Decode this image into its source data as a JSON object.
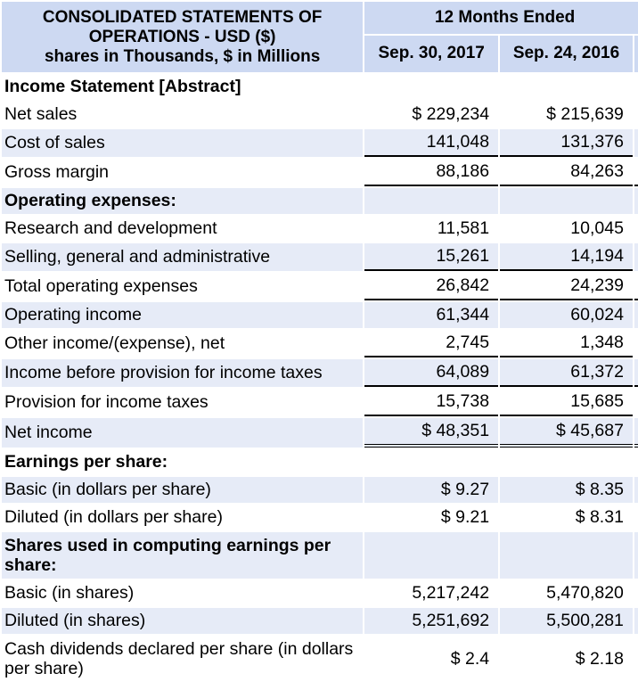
{
  "header": {
    "title_line1": "CONSOLIDATED STATEMENTS OF",
    "title_line2": "OPERATIONS - USD ($)",
    "title_line3": "shares in Thousands, $ in Millions",
    "period": "12 Months Ended",
    "col1": "Sep. 30, 2017",
    "col2": "Sep. 24, 2016"
  },
  "rows": {
    "income_statement": {
      "label": "Income Statement [Abstract]",
      "v1": "",
      "v2": ""
    },
    "net_sales": {
      "label": "Net sales",
      "v1": "$ 229,234",
      "v2": "$ 215,639"
    },
    "cost_of_sales": {
      "label": "Cost of sales",
      "v1": "141,048",
      "v2": "131,376"
    },
    "gross_margin": {
      "label": "Gross margin",
      "v1": "88,186",
      "v2": "84,263"
    },
    "operating_expenses": {
      "label": "Operating expenses:",
      "v1": "",
      "v2": ""
    },
    "rnd": {
      "label": "Research and development",
      "v1": "11,581",
      "v2": "10,045"
    },
    "sga": {
      "label": "Selling, general and administrative",
      "v1": "15,261",
      "v2": "14,194"
    },
    "total_opex": {
      "label": "Total operating expenses",
      "v1": "26,842",
      "v2": "24,239"
    },
    "operating_income": {
      "label": "Operating income",
      "v1": "61,344",
      "v2": "60,024"
    },
    "other_income": {
      "label": "Other income/(expense), net",
      "v1": "2,745",
      "v2": "1,348"
    },
    "income_before_tax": {
      "label": "Income before provision for income taxes",
      "v1": "64,089",
      "v2": "61,372"
    },
    "provision_tax": {
      "label": "Provision for income taxes",
      "v1": "15,738",
      "v2": "15,685"
    },
    "net_income": {
      "label": "Net income",
      "v1": "$ 48,351",
      "v2": "$ 45,687"
    },
    "eps": {
      "label": "Earnings per share:",
      "v1": "",
      "v2": ""
    },
    "eps_basic": {
      "label": "Basic (in dollars per share)",
      "v1": "$ 9.27",
      "v2": "$ 8.35"
    },
    "eps_diluted": {
      "label": "Diluted (in dollars per share)",
      "v1": "$ 9.21",
      "v2": "$ 8.31"
    },
    "shares_used": {
      "label": "Shares used in computing earnings per share:",
      "v1": "",
      "v2": ""
    },
    "shares_basic": {
      "label": "Basic (in shares)",
      "v1": "5,217,242",
      "v2": "5,470,820"
    },
    "shares_diluted": {
      "label": "Diluted (in shares)",
      "v1": "5,251,692",
      "v2": "5,500,281"
    },
    "dividends": {
      "label": "Cash dividends declared per share (in dollars per share)",
      "v1": "$ 2.4",
      "v2": "$ 2.18"
    }
  }
}
